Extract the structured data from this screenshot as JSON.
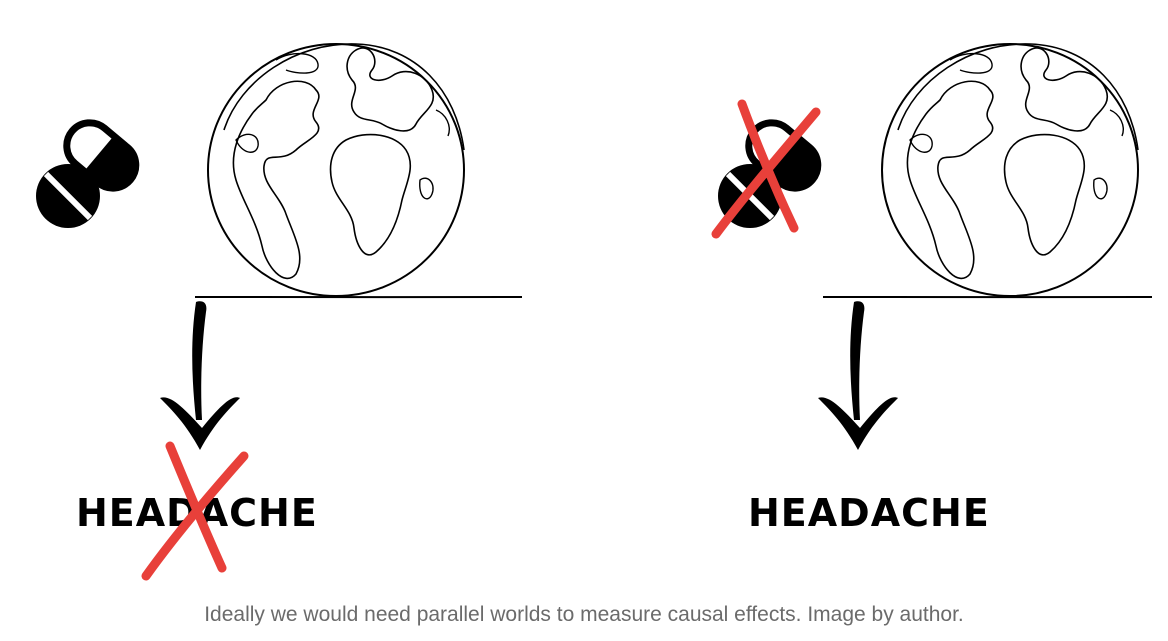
{
  "scenes": [
    {
      "label": "HEADACHE",
      "pill_crossed": false,
      "outcome_crossed": true
    },
    {
      "label": "HEADACHE",
      "pill_crossed": true,
      "outcome_crossed": false
    }
  ],
  "caption": "Ideally we would need parallel worlds to measure causal effects. Image by author.",
  "colors": {
    "ink": "#000000",
    "cross": "#e8403a",
    "caption": "#6b6b6b"
  },
  "icons": [
    "pill-capsule-icon",
    "pill-tablet-icon",
    "globe-icon",
    "arrow-down-icon",
    "cross-mark-icon"
  ]
}
